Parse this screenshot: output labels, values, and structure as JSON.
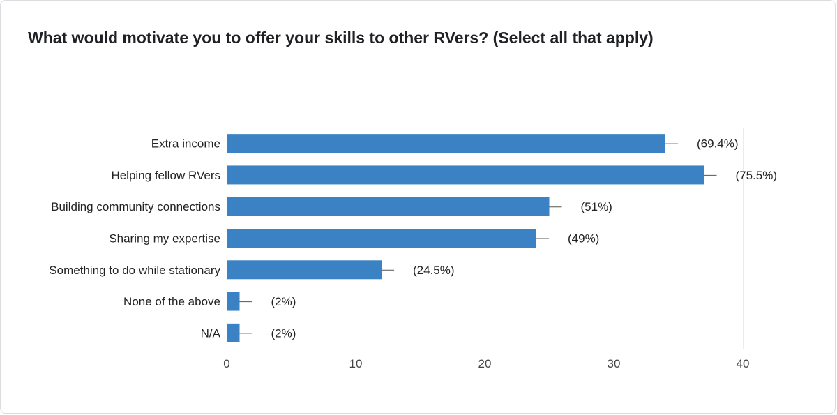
{
  "chart_data": {
    "type": "bar",
    "orientation": "horizontal",
    "title": "What would motivate you to offer your skills to other RVers? (Select all that apply)",
    "categories": [
      "Extra income",
      "Helping fellow RVers",
      "Building community connections",
      "Sharing my expertise",
      "Something to do while stationary",
      "None of the above",
      "N/A"
    ],
    "values": [
      34,
      37,
      25,
      24,
      12,
      1,
      1
    ],
    "data_labels": [
      "(69.4%)",
      "(75.5%)",
      "(51%)",
      "(49%)",
      "(24.5%)",
      "(2%)",
      "(2%)"
    ],
    "xlim": [
      0,
      40
    ],
    "xticks": [
      0,
      10,
      20,
      30,
      40
    ],
    "grid": true,
    "bar_color": "#3a82c4",
    "grid_color": "#ebebeb",
    "axis_color": "#333333"
  }
}
